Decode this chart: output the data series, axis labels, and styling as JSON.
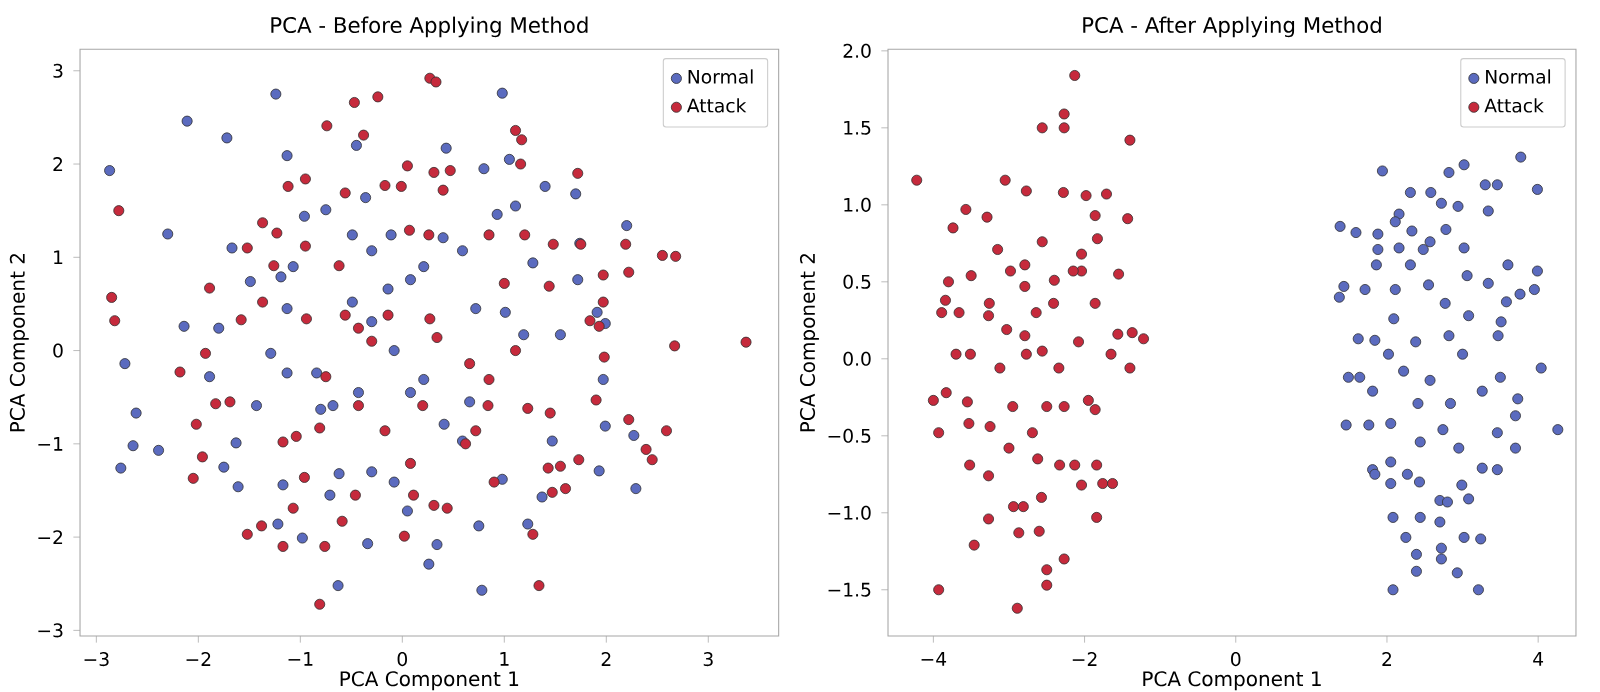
{
  "chart_data": [
    {
      "type": "scatter",
      "title": "PCA - Before Applying Method",
      "xlabel": "PCA Component 1",
      "ylabel": "PCA Component 2",
      "xlim": [
        -3.16,
        3.69
      ],
      "ylim": [
        -3.06,
        3.23
      ],
      "xticks": [
        {
          "value": -3,
          "label": "−3"
        },
        {
          "value": -2,
          "label": "−2"
        },
        {
          "value": -1,
          "label": "−1"
        },
        0,
        1,
        2,
        3
      ],
      "yticks": [
        {
          "value": -3,
          "label": "−3"
        },
        {
          "value": -2,
          "label": "−2"
        },
        {
          "value": -1,
          "label": "−1"
        },
        0,
        1,
        2,
        3
      ],
      "legend": "top right",
      "marker": "circle",
      "series": [
        {
          "name": "Normal",
          "color": "#5b6bbf",
          "x": [
            -2.87,
            -2.11,
            -1.72,
            -2.3,
            -2.72,
            -2.61,
            -2.64,
            -2.76,
            -2.39,
            -2.14,
            -1.89,
            -1.67,
            -1.24,
            -1.13,
            -0.96,
            -0.75,
            -0.45,
            -0.36,
            0.43,
            0.98,
            1.05,
            0.8,
            0.93,
            1.11,
            1.4,
            1.7,
            2.2,
            1.74,
            1.28,
            1.72,
            1.99,
            1.91,
            1.19,
            1.55,
            1.97,
            1.99,
            2.27,
            2.29,
            1.93,
            1.47,
            1.37,
            1.23,
            0.98,
            0.75,
            0.78,
            0.26,
            0.34,
            0.05,
            -0.08,
            -0.34,
            -0.63,
            -0.98,
            -1.22,
            -1.61,
            -1.75,
            -1.63,
            -1.43,
            -1.17,
            -0.71,
            -0.62,
            -0.3,
            -0.8,
            -0.43,
            0.08,
            0.21,
            0.41,
            0.59,
            0.66,
            -0.08,
            -0.3,
            -0.49,
            -0.14,
            0.08,
            0.4,
            0.59,
            0.21,
            0.72,
            1.01,
            -0.11,
            -0.49,
            -0.3,
            -1.13,
            -1.19,
            -1.07,
            -1.49,
            -1.8,
            -1.29,
            -1.13,
            -0.84,
            -0.68
          ],
          "values": [
            1.93,
            2.46,
            2.28,
            1.25,
            -0.14,
            -0.67,
            -1.02,
            -1.26,
            -1.07,
            0.26,
            -0.28,
            1.1,
            2.75,
            2.09,
            1.44,
            1.51,
            2.2,
            1.64,
            2.17,
            2.76,
            2.05,
            1.95,
            1.46,
            1.55,
            1.76,
            1.68,
            1.34,
            1.15,
            0.94,
            0.76,
            0.29,
            0.41,
            0.17,
            0.17,
            -0.31,
            -0.81,
            -0.91,
            -1.48,
            -1.29,
            -0.97,
            -1.57,
            -1.86,
            -1.38,
            -1.88,
            -2.57,
            -2.29,
            -2.08,
            -1.72,
            -1.41,
            -2.07,
            -2.52,
            -2.01,
            -1.86,
            -1.46,
            -1.25,
            -0.99,
            -0.59,
            -1.44,
            -1.55,
            -1.32,
            -1.3,
            -0.63,
            -0.45,
            -0.45,
            -0.31,
            -0.79,
            -0.97,
            -0.55,
            0.0,
            0.31,
            0.52,
            0.66,
            0.76,
            1.21,
            1.07,
            0.9,
            0.45,
            0.41,
            1.24,
            1.24,
            1.07,
            0.45,
            0.79,
            0.9,
            0.74,
            0.24,
            -0.03,
            -0.24,
            -0.24,
            -0.59
          ]
        },
        {
          "name": "Attack",
          "color": "#c62a3c",
          "x": [
            -2.85,
            -2.82,
            -2.78,
            -2.18,
            -2.05,
            -2.02,
            -1.96,
            -1.93,
            -1.89,
            -1.83,
            -1.69,
            -1.58,
            -1.52,
            -1.52,
            -1.38,
            -1.37,
            -1.37,
            -1.26,
            -1.23,
            -1.17,
            -1.17,
            -1.12,
            -1.07,
            -1.04,
            -0.95,
            -0.95,
            -0.96,
            -0.94,
            -0.81,
            -0.76,
            -0.81,
            -0.74,
            -0.62,
            -0.56,
            -0.59,
            -0.47,
            -0.46,
            -0.38,
            -0.24,
            -0.17,
            -0.01,
            0.05,
            0.02,
            0.11,
            0.31,
            0.44,
            0.27,
            0.33,
            0.31,
            0.47,
            0.4,
            0.07,
            0.26,
            0.27,
            0.34,
            0.2,
            0.08,
            -0.17,
            -0.43,
            -0.75,
            -0.56,
            -0.43,
            -0.3,
            -0.14,
            0.66,
            0.62,
            0.72,
            0.85,
            0.84,
            0.9,
            0.85,
            1.0,
            1.11,
            1.17,
            1.16,
            1.2,
            1.11,
            1.23,
            1.28,
            1.34,
            1.44,
            1.45,
            1.48,
            1.43,
            1.47,
            1.55,
            1.6,
            1.72,
            1.75,
            1.73,
            1.84,
            1.9,
            1.93,
            1.97,
            1.97,
            1.98,
            2.19,
            2.22,
            2.22,
            2.39,
            2.45,
            2.55,
            2.59,
            2.68,
            2.67,
            3.37
          ],
          "values": [
            0.57,
            0.32,
            1.5,
            -0.23,
            -1.37,
            -0.79,
            -1.14,
            -0.03,
            0.67,
            -0.57,
            -0.55,
            0.33,
            1.1,
            -1.97,
            -1.88,
            1.37,
            0.52,
            0.91,
            1.26,
            -2.1,
            -0.98,
            1.76,
            -1.69,
            -0.92,
            1.84,
            1.12,
            -1.36,
            0.34,
            -0.83,
            -2.1,
            -2.72,
            2.41,
            0.91,
            1.69,
            -1.83,
            2.66,
            -1.55,
            2.31,
            2.72,
            1.77,
            1.76,
            1.98,
            -1.99,
            -1.55,
            -1.66,
            -1.69,
            2.92,
            2.88,
            1.91,
            1.93,
            1.72,
            1.29,
            1.24,
            0.34,
            0.14,
            -0.59,
            -1.21,
            -0.86,
            -0.59,
            -0.28,
            0.38,
            0.24,
            0.1,
            0.38,
            -0.14,
            -1.0,
            -0.86,
            -0.31,
            -0.59,
            -1.41,
            1.24,
            0.72,
            2.36,
            2.26,
            2.0,
            1.24,
            0.0,
            -0.62,
            -1.97,
            -2.52,
            0.69,
            -0.67,
            1.14,
            -1.26,
            -1.52,
            -1.24,
            -1.48,
            1.9,
            1.14,
            -1.17,
            0.32,
            -0.53,
            0.26,
            0.52,
            0.81,
            -0.07,
            1.14,
            0.84,
            -0.74,
            -1.06,
            -1.17,
            1.02,
            -0.86,
            1.01,
            0.05,
            0.09
          ]
        }
      ]
    },
    {
      "type": "scatter",
      "title": "PCA - After Applying Method",
      "xlabel": "PCA Component 1",
      "ylabel": "PCA Component 2",
      "xlim": [
        -4.6,
        4.5
      ],
      "ylim": [
        -1.8,
        2.01
      ],
      "xticks": [
        {
          "value": -4,
          "label": "−4"
        },
        {
          "value": -2,
          "label": "−2"
        },
        0,
        2,
        4
      ],
      "yticks": [
        {
          "value": -1.5,
          "label": "−1.5"
        },
        {
          "value": -1.0,
          "label": "−1.0"
        },
        {
          "value": -0.5,
          "label": "−0.5"
        },
        {
          "value": 0,
          "label": "0.0"
        },
        0.5,
        {
          "value": 1,
          "label": "1.0"
        },
        1.5,
        {
          "value": 2,
          "label": "2.0"
        }
      ],
      "legend": "top right",
      "marker": "circle",
      "series": [
        {
          "name": "Normal",
          "color": "#5b6bbf",
          "x": [
            3.77,
            1.94,
            3.02,
            2.82,
            3.3,
            3.46,
            3.99,
            2.31,
            2.58,
            2.72,
            2.94,
            3.34,
            2.16,
            2.11,
            1.38,
            1.59,
            1.88,
            2.33,
            2.78,
            2.57,
            1.88,
            2.16,
            2.48,
            3.02,
            1.86,
            2.31,
            3.6,
            3.99,
            3.06,
            1.43,
            1.37,
            1.71,
            2.11,
            2.55,
            3.34,
            3.76,
            3.95,
            3.58,
            2.77,
            3.51,
            3.08,
            2.09,
            1.62,
            1.84,
            2.02,
            2.38,
            2.82,
            3.47,
            4.04,
            3.0,
            1.49,
            1.64,
            1.81,
            2.22,
            2.57,
            3.5,
            3.73,
            3.26,
            2.84,
            2.41,
            1.46,
            1.76,
            4.26,
            3.7,
            3.46,
            3.7,
            2.74,
            2.44,
            2.95,
            2.05,
            1.81,
            1.84,
            2.05,
            2.27,
            2.43,
            2.05,
            3.26,
            3.46,
            2.99,
            3.08,
            2.7,
            2.8,
            2.08,
            2.44,
            2.7,
            2.25,
            2.72,
            3.02,
            3.24,
            2.39,
            2.72,
            2.39,
            2.93,
            2.08,
            3.21
          ],
          "values": [
            1.31,
            1.22,
            1.26,
            1.21,
            1.13,
            1.13,
            1.1,
            1.08,
            1.08,
            1.01,
            0.99,
            0.96,
            0.94,
            0.89,
            0.86,
            0.82,
            0.81,
            0.83,
            0.84,
            0.76,
            0.71,
            0.72,
            0.71,
            0.72,
            0.61,
            0.61,
            0.61,
            0.57,
            0.54,
            0.47,
            0.4,
            0.45,
            0.45,
            0.48,
            0.49,
            0.42,
            0.45,
            0.37,
            0.36,
            0.24,
            0.28,
            0.26,
            0.13,
            0.12,
            0.03,
            0.11,
            0.15,
            0.15,
            -0.06,
            0.03,
            -0.12,
            -0.12,
            -0.21,
            -0.08,
            -0.14,
            -0.12,
            -0.26,
            -0.21,
            -0.29,
            -0.29,
            -0.43,
            -0.43,
            -0.46,
            -0.37,
            -0.48,
            -0.58,
            -0.46,
            -0.54,
            -0.58,
            -0.42,
            -0.72,
            -0.75,
            -0.67,
            -0.75,
            -0.8,
            -0.81,
            -0.71,
            -0.72,
            -0.82,
            -0.91,
            -0.92,
            -0.93,
            -1.03,
            -1.03,
            -1.06,
            -1.16,
            -1.23,
            -1.16,
            -1.17,
            -1.27,
            -1.3,
            -1.38,
            -1.39,
            -1.5,
            -1.5
          ]
        },
        {
          "name": "Attack",
          "color": "#c62a3c",
          "x": [
            -4.22,
            -2.13,
            -2.56,
            -2.27,
            -2.27,
            -1.4,
            -3.05,
            -3.57,
            -3.74,
            -3.29,
            -2.77,
            -2.28,
            -1.98,
            -1.71,
            -1.86,
            -1.43,
            -1.83,
            -2.56,
            -3.15,
            -3.5,
            -3.8,
            -3.84,
            -3.89,
            -3.66,
            -3.26,
            -2.98,
            -2.79,
            -2.4,
            -2.04,
            -1.55,
            -1.86,
            -1.56,
            -1.37,
            -1.22,
            -1.4,
            -3.7,
            -3.51,
            -4.0,
            -3.93,
            -3.83,
            -3.55,
            -3.53,
            -3.52,
            -3.27,
            -3.25,
            -3.46,
            -3.27,
            -3.93,
            -2.89,
            -2.5,
            -2.5,
            -2.27,
            -2.87,
            -2.6,
            -2.94,
            -2.81,
            -2.57,
            -1.84,
            -2.04,
            -1.76,
            -1.63,
            -1.84,
            -1.95,
            -1.86,
            -2.27,
            -2.5,
            -2.95,
            -3.0,
            -2.69,
            -2.62,
            -2.33,
            -2.13,
            -3.12,
            -2.77,
            -2.56,
            -2.34,
            -2.08,
            -1.65,
            -2.79,
            -3.03,
            -2.64,
            -2.41,
            -2.79,
            -2.04,
            -2.15,
            -3.27
          ],
          "values": [
            1.16,
            1.84,
            1.5,
            1.59,
            1.5,
            1.42,
            1.16,
            0.97,
            0.85,
            0.92,
            1.09,
            1.08,
            1.06,
            1.07,
            0.93,
            0.91,
            0.78,
            0.76,
            0.71,
            0.54,
            0.5,
            0.38,
            0.3,
            0.3,
            0.36,
            0.57,
            0.47,
            0.51,
            0.57,
            0.55,
            0.36,
            0.16,
            0.17,
            0.13,
            -0.06,
            0.03,
            0.03,
            -0.27,
            -0.48,
            -0.22,
            -0.28,
            -0.42,
            -0.69,
            -0.76,
            -0.44,
            -1.21,
            -1.04,
            -1.5,
            -1.62,
            -1.47,
            -1.37,
            -1.3,
            -1.13,
            -1.12,
            -0.96,
            -0.96,
            -0.9,
            -1.03,
            -0.82,
            -0.81,
            -0.81,
            -0.69,
            -0.27,
            -0.33,
            -0.31,
            -0.31,
            -0.31,
            -0.58,
            -0.48,
            -0.65,
            -0.69,
            -0.69,
            -0.06,
            0.03,
            0.05,
            -0.06,
            0.11,
            0.03,
            0.15,
            0.19,
            0.3,
            0.36,
            0.61,
            0.68,
            0.57,
            0.28
          ]
        }
      ]
    }
  ]
}
